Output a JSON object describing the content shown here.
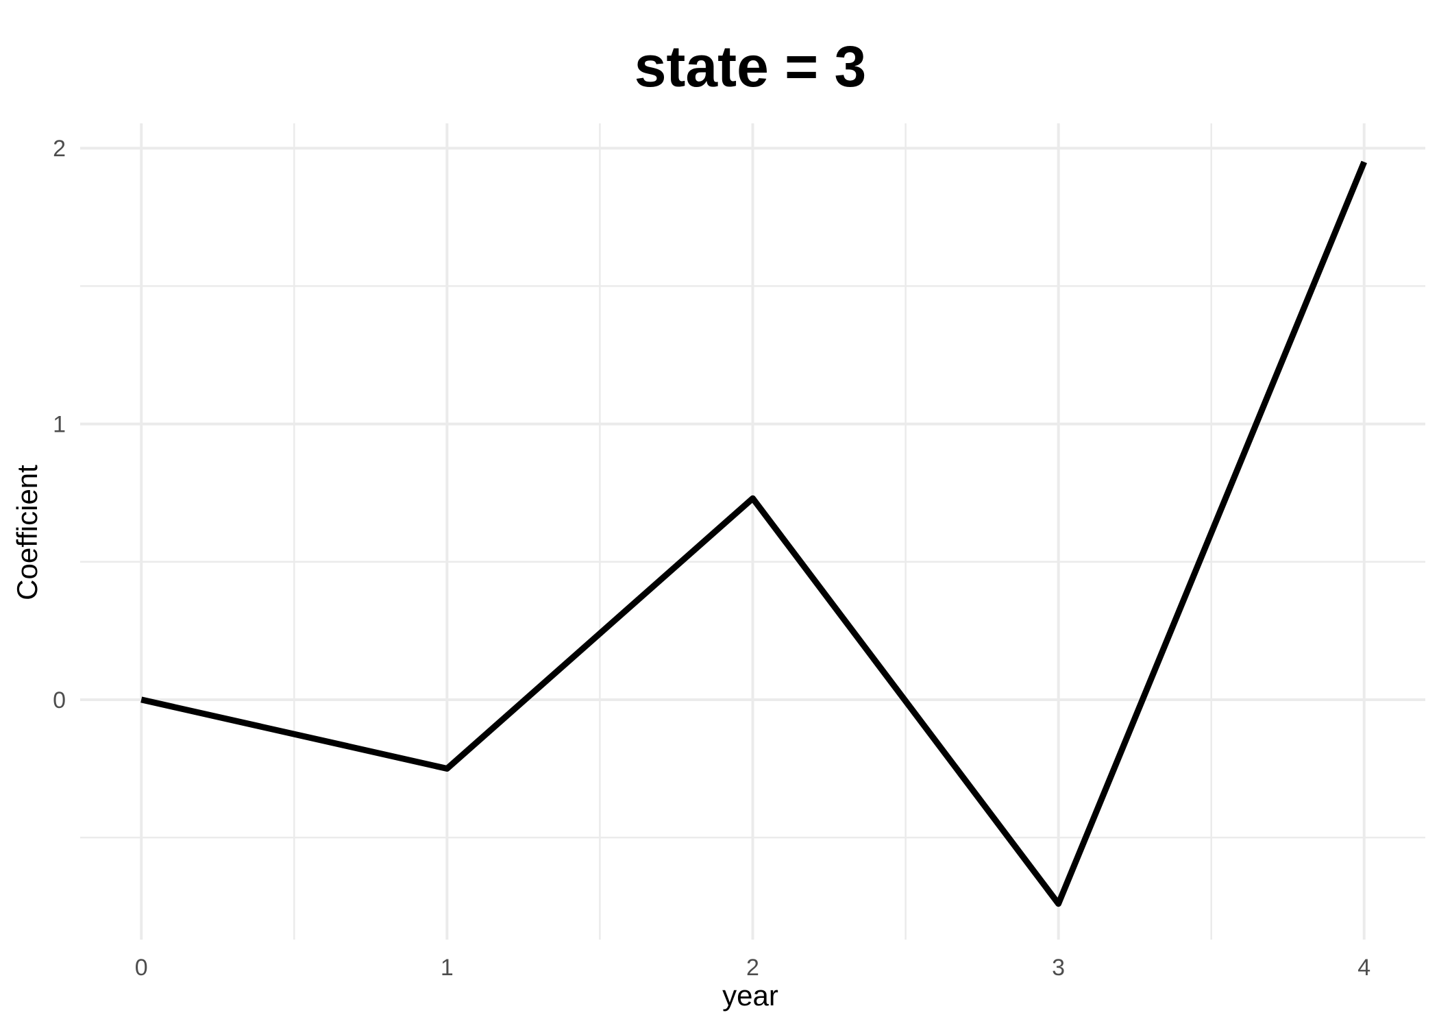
{
  "chart_data": {
    "type": "line",
    "title": "state = 3",
    "xlabel": "year",
    "ylabel": "Coefficient",
    "x": [
      0,
      1,
      2,
      3,
      4
    ],
    "series": [
      {
        "values": [
          0,
          -0.25,
          0.73,
          -0.74,
          1.95
        ]
      }
    ],
    "xlim": [
      -0.2,
      4.2
    ],
    "ylim": [
      -0.87,
      2.09
    ],
    "x_ticks": [
      "0",
      "1",
      "2",
      "3",
      "4"
    ],
    "y_ticks": [
      "0",
      "1",
      "2"
    ],
    "y_tick_values": [
      0,
      1,
      2
    ],
    "y_minor_values": [
      -0.5,
      0.5,
      1.5
    ],
    "x_minor_values": [
      0.5,
      1.5,
      2.5,
      3.5
    ],
    "grid": true,
    "legend": "none",
    "line_color": "#000000",
    "grid_color": "#ebebeb",
    "tick_label_color": "#4d4d4d"
  }
}
